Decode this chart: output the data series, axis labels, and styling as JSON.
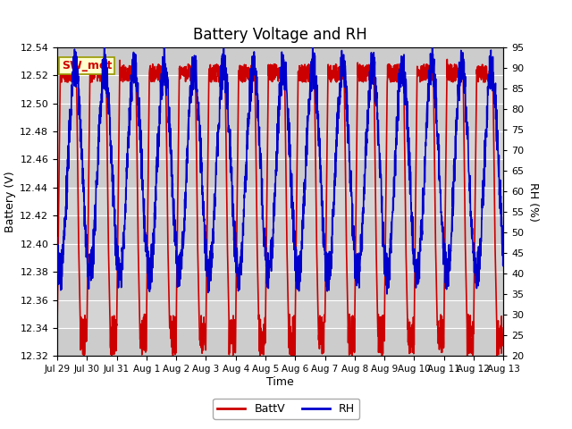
{
  "title": "Battery Voltage and RH",
  "xlabel": "Time",
  "ylabel_left": "Battery (V)",
  "ylabel_right": "RH (%)",
  "annotation": "SW_met",
  "ylim_left": [
    12.32,
    12.54
  ],
  "ylim_right": [
    20,
    95
  ],
  "yticks_left": [
    12.32,
    12.34,
    12.36,
    12.38,
    12.4,
    12.42,
    12.44,
    12.46,
    12.48,
    12.5,
    12.52,
    12.54
  ],
  "yticks_right": [
    20,
    25,
    30,
    35,
    40,
    45,
    50,
    55,
    60,
    65,
    70,
    75,
    80,
    85,
    90,
    95
  ],
  "xtick_labels": [
    "Jul 29",
    "Jul 30",
    "Jul 31",
    "Aug 1",
    "Aug 2",
    "Aug 3",
    "Aug 4",
    "Aug 5",
    "Aug 6",
    "Aug 7",
    "Aug 8",
    "Aug 9",
    "Aug 10",
    "Aug 11",
    "Aug 12",
    "Aug 13"
  ],
  "color_battv": "#cc0000",
  "color_rh": "#0000cc",
  "legend_battv": "BattV",
  "legend_rh": "RH",
  "plot_bg_color": "#d4d4d4",
  "annotation_bg": "#ffffcc",
  "annotation_border": "#999900",
  "line_width": 1.2,
  "title_fontsize": 12
}
